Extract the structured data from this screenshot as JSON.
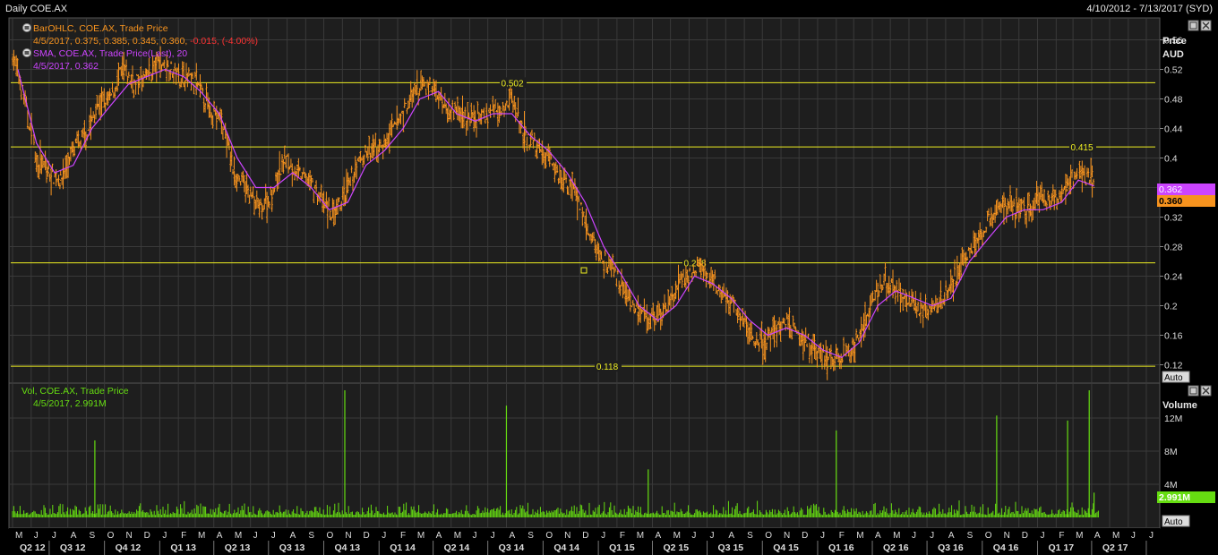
{
  "header": {
    "title": "Daily COE.AX",
    "date_range": "4/10/2012 - 7/13/2017 (SYD)"
  },
  "price_panel": {
    "axis_title_line1": "Price",
    "axis_title_line2": "AUD",
    "auto_label": "Auto",
    "legend": [
      {
        "text": "BarOHLC, COE.AX, Trade Price",
        "color": "#f7931e"
      },
      {
        "text_prefix": "4/5/2017, 0.375, 0.385, 0.345, 0.360, ",
        "text_change": "-0.015, (-4.00%)",
        "color": "#f7931e",
        "change_color": "#ff3333"
      },
      {
        "text": "SMA, COE.AX, Trade Price(Last),  20",
        "color": "#cc44ff"
      },
      {
        "text": "4/5/2017, 0.362",
        "color": "#cc44ff"
      }
    ],
    "last_sma_badge": "0.362",
    "last_close_badge": "0.360"
  },
  "volume_panel": {
    "axis_title": "Volume",
    "auto_label": "Auto",
    "legend": [
      {
        "text": "Vol, COE.AX, Trade Price"
      },
      {
        "text": "4/5/2017, 2.991M"
      }
    ],
    "last_badge": "2.991M"
  },
  "months": [
    "M",
    "J",
    "J",
    "A",
    "S",
    "O",
    "N",
    "D",
    "J",
    "F",
    "M",
    "A",
    "M",
    "J",
    "J",
    "A",
    "S",
    "O",
    "N",
    "D",
    "J",
    "F",
    "M",
    "A",
    "M",
    "J",
    "J",
    "A",
    "S",
    "O",
    "N",
    "D",
    "J",
    "F",
    "M",
    "A",
    "M",
    "J",
    "J",
    "A",
    "S",
    "O",
    "N",
    "D",
    "J",
    "F",
    "M",
    "A",
    "M",
    "J",
    "J",
    "A",
    "S",
    "O",
    "N",
    "D",
    "J",
    "F",
    "M",
    "A",
    "M",
    "J",
    "J"
  ],
  "quarters": [
    "Q2 12",
    "Q3 12",
    "Q4 12",
    "Q1 13",
    "Q2 13",
    "Q3 13",
    "Q4 13",
    "Q1 14",
    "Q2 14",
    "Q3 14",
    "Q4 14",
    "Q1 15",
    "Q2 15",
    "Q3 15",
    "Q4 15",
    "Q1 16",
    "Q2 16",
    "Q3 16",
    "Q4 16",
    "Q1 17",
    "Q2 17"
  ],
  "colors": {
    "price": "#f7931e",
    "sma": "#cc44ff",
    "volume": "#66dd11",
    "hline": "#eeee22",
    "grid": "#3a3a3a",
    "panel_bg": "#1e1e1e"
  },
  "chart_data": [
    {
      "type": "line",
      "title": "",
      "ylabel": "Price AUD",
      "ylim": [
        0.1,
        0.58
      ],
      "yticks": [
        0.12,
        0.16,
        0.2,
        0.24,
        0.28,
        0.32,
        0.36,
        0.4,
        0.44,
        0.48,
        0.52,
        0.56
      ],
      "grid": true,
      "legend": "top-left",
      "x_start": "2012-05-01",
      "x_end": "2017-07-13",
      "series": [
        {
          "name": "BarOHLC, COE.AX, Trade Price",
          "style": "ohlc",
          "x": [
            "2012-05-01",
            "2012-05-20",
            "2012-06-10",
            "2012-06-30",
            "2012-07-20",
            "2012-08-10",
            "2012-08-31",
            "2012-09-20",
            "2012-10-10",
            "2012-10-31",
            "2012-11-20",
            "2012-12-10",
            "2012-12-31",
            "2013-01-20",
            "2013-02-10",
            "2013-03-03",
            "2013-03-24",
            "2013-04-14",
            "2013-05-05",
            "2013-05-26",
            "2013-06-16",
            "2013-07-07",
            "2013-07-28",
            "2013-08-18",
            "2013-09-08",
            "2013-09-29",
            "2013-10-20",
            "2013-11-10",
            "2013-12-01",
            "2013-12-22",
            "2014-01-12",
            "2014-02-02",
            "2014-02-23",
            "2014-03-16",
            "2014-04-06",
            "2014-04-27",
            "2014-05-18",
            "2014-06-08",
            "2014-06-29",
            "2014-07-20",
            "2014-08-10",
            "2014-08-31",
            "2014-09-21",
            "2014-10-12",
            "2014-11-02",
            "2014-11-23",
            "2014-12-14",
            "2015-01-04",
            "2015-01-25",
            "2015-02-15",
            "2015-03-08",
            "2015-03-29",
            "2015-04-19",
            "2015-05-10",
            "2015-05-31",
            "2015-06-21",
            "2015-07-12",
            "2015-08-02",
            "2015-08-23",
            "2015-09-13",
            "2015-10-04",
            "2015-10-25",
            "2015-11-15",
            "2015-12-06",
            "2015-12-27",
            "2016-01-17",
            "2016-02-07",
            "2016-02-28",
            "2016-03-20",
            "2016-04-10",
            "2016-05-01",
            "2016-05-22",
            "2016-06-12",
            "2016-07-03",
            "2016-07-24",
            "2016-08-14",
            "2016-09-04",
            "2016-09-25",
            "2016-10-16",
            "2016-11-06",
            "2016-11-27",
            "2016-12-18",
            "2017-01-08",
            "2017-01-29",
            "2017-02-19",
            "2017-03-12",
            "2017-04-02",
            "2017-04-05"
          ],
          "values": [
            0.54,
            0.48,
            0.4,
            0.38,
            0.37,
            0.41,
            0.43,
            0.47,
            0.48,
            0.52,
            0.5,
            0.51,
            0.53,
            0.52,
            0.51,
            0.5,
            0.47,
            0.45,
            0.38,
            0.36,
            0.33,
            0.35,
            0.4,
            0.38,
            0.37,
            0.34,
            0.32,
            0.36,
            0.4,
            0.41,
            0.42,
            0.45,
            0.48,
            0.5,
            0.49,
            0.47,
            0.46,
            0.45,
            0.46,
            0.47,
            0.48,
            0.43,
            0.41,
            0.4,
            0.37,
            0.36,
            0.3,
            0.27,
            0.25,
            0.22,
            0.19,
            0.18,
            0.19,
            0.22,
            0.24,
            0.25,
            0.23,
            0.21,
            0.19,
            0.16,
            0.15,
            0.17,
            0.18,
            0.16,
            0.14,
            0.13,
            0.125,
            0.14,
            0.18,
            0.22,
            0.23,
            0.21,
            0.2,
            0.19,
            0.21,
            0.23,
            0.27,
            0.29,
            0.32,
            0.34,
            0.33,
            0.33,
            0.35,
            0.34,
            0.36,
            0.38,
            0.375,
            0.36
          ]
        },
        {
          "name": "SMA, COE.AX, Trade Price(Last),  20",
          "style": "line",
          "x": [
            "2012-05-10",
            "2012-06-10",
            "2012-07-10",
            "2012-08-10",
            "2012-09-10",
            "2012-10-10",
            "2012-11-10",
            "2012-12-10",
            "2013-01-10",
            "2013-02-10",
            "2013-03-10",
            "2013-04-10",
            "2013-05-10",
            "2013-06-10",
            "2013-07-10",
            "2013-08-10",
            "2013-09-10",
            "2013-10-10",
            "2013-11-10",
            "2013-12-10",
            "2014-01-10",
            "2014-02-10",
            "2014-03-10",
            "2014-04-10",
            "2014-05-10",
            "2014-06-10",
            "2014-07-10",
            "2014-08-10",
            "2014-09-10",
            "2014-10-10",
            "2014-11-10",
            "2014-12-10",
            "2015-01-10",
            "2015-02-10",
            "2015-03-10",
            "2015-04-10",
            "2015-05-10",
            "2015-06-10",
            "2015-07-10",
            "2015-08-10",
            "2015-09-10",
            "2015-10-10",
            "2015-11-10",
            "2015-12-10",
            "2016-01-10",
            "2016-02-10",
            "2016-03-10",
            "2016-04-10",
            "2016-05-10",
            "2016-06-10",
            "2016-07-10",
            "2016-08-10",
            "2016-09-10",
            "2016-10-10",
            "2016-11-10",
            "2016-12-10",
            "2017-01-10",
            "2017-02-10",
            "2017-03-10",
            "2017-04-05"
          ],
          "values": [
            0.52,
            0.42,
            0.38,
            0.39,
            0.44,
            0.47,
            0.5,
            0.51,
            0.52,
            0.51,
            0.49,
            0.46,
            0.4,
            0.36,
            0.36,
            0.38,
            0.36,
            0.33,
            0.34,
            0.39,
            0.41,
            0.44,
            0.48,
            0.49,
            0.46,
            0.45,
            0.46,
            0.46,
            0.43,
            0.41,
            0.38,
            0.34,
            0.28,
            0.24,
            0.2,
            0.18,
            0.2,
            0.24,
            0.23,
            0.21,
            0.18,
            0.16,
            0.17,
            0.16,
            0.14,
            0.13,
            0.15,
            0.2,
            0.22,
            0.21,
            0.2,
            0.21,
            0.26,
            0.29,
            0.32,
            0.33,
            0.33,
            0.34,
            0.37,
            0.362
          ]
        }
      ],
      "horizontal_lines": [
        0.502,
        0.415,
        0.258,
        0.118
      ]
    },
    {
      "type": "bar",
      "title": "",
      "ylabel": "Volume",
      "ylim": [
        0,
        16000000
      ],
      "yticks": [
        4000000,
        8000000,
        12000000
      ],
      "ytick_labels": [
        "4M",
        "8M",
        "12M"
      ],
      "series": [
        {
          "name": "Vol, COE.AX, Trade Price",
          "spikes": [
            {
              "x": "2012-09-15",
              "value": 9300000
            },
            {
              "x": "2013-11-05",
              "value": 15500000
            },
            {
              "x": "2014-08-01",
              "value": 13500000
            },
            {
              "x": "2015-03-25",
              "value": 5800000
            },
            {
              "x": "2016-02-01",
              "value": 10500000
            },
            {
              "x": "2016-10-25",
              "value": 12300000
            },
            {
              "x": "2017-02-20",
              "value": 11700000
            },
            {
              "x": "2017-03-28",
              "value": 18000000
            },
            {
              "x": "2017-04-05",
              "value": 2991000
            }
          ]
        }
      ]
    }
  ]
}
